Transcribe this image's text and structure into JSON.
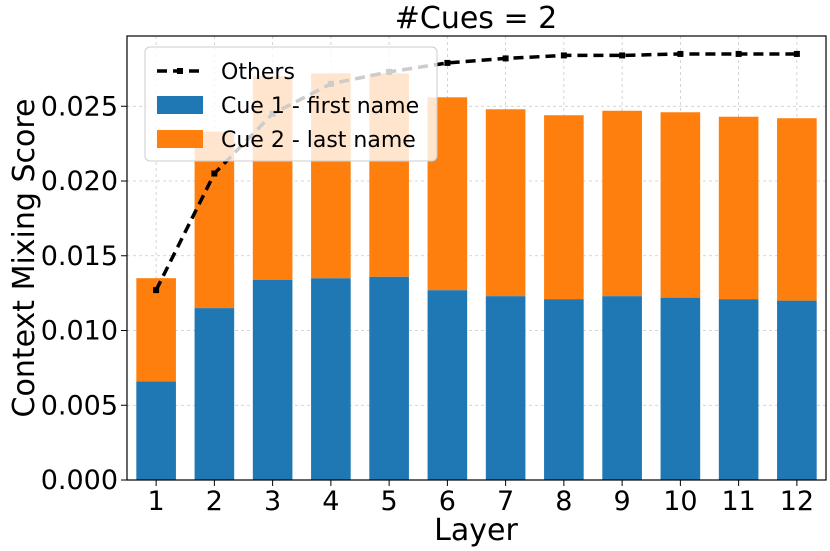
{
  "chart_data": {
    "type": "bar",
    "title": "#Cues = 2",
    "xlabel": "Layer",
    "ylabel": "Context Mixing Score",
    "categories": [
      "1",
      "2",
      "3",
      "4",
      "5",
      "6",
      "7",
      "8",
      "9",
      "10",
      "11",
      "12"
    ],
    "ylim": [
      0,
      0.0297
    ],
    "yticks": [
      "0.000",
      "0.005",
      "0.010",
      "0.015",
      "0.020",
      "0.025"
    ],
    "ytick_values": [
      0,
      0.005,
      0.01,
      0.015,
      0.02,
      0.025
    ],
    "stacked": true,
    "grid": true,
    "legend_position": "top-left",
    "series": [
      {
        "name": "Cue 1 - first name",
        "kind": "bar",
        "color": "#1f77b4",
        "values": [
          0.0066,
          0.0115,
          0.0134,
          0.0135,
          0.0136,
          0.0127,
          0.0123,
          0.0121,
          0.0123,
          0.0122,
          0.0121,
          0.012
        ]
      },
      {
        "name": "Cue 2 - last name",
        "kind": "bar",
        "color": "#ff7f0e",
        "values": [
          0.0069,
          0.0118,
          0.0136,
          0.0137,
          0.0136,
          0.0129,
          0.0125,
          0.0123,
          0.0124,
          0.0124,
          0.0122,
          0.0122
        ]
      },
      {
        "name": "Others",
        "kind": "line",
        "color": "#000000",
        "style": "dashed",
        "marker": "square",
        "values": [
          0.0127,
          0.0205,
          0.0245,
          0.0265,
          0.0273,
          0.0279,
          0.0282,
          0.0284,
          0.0284,
          0.0285,
          0.0285,
          0.0285
        ]
      }
    ]
  }
}
